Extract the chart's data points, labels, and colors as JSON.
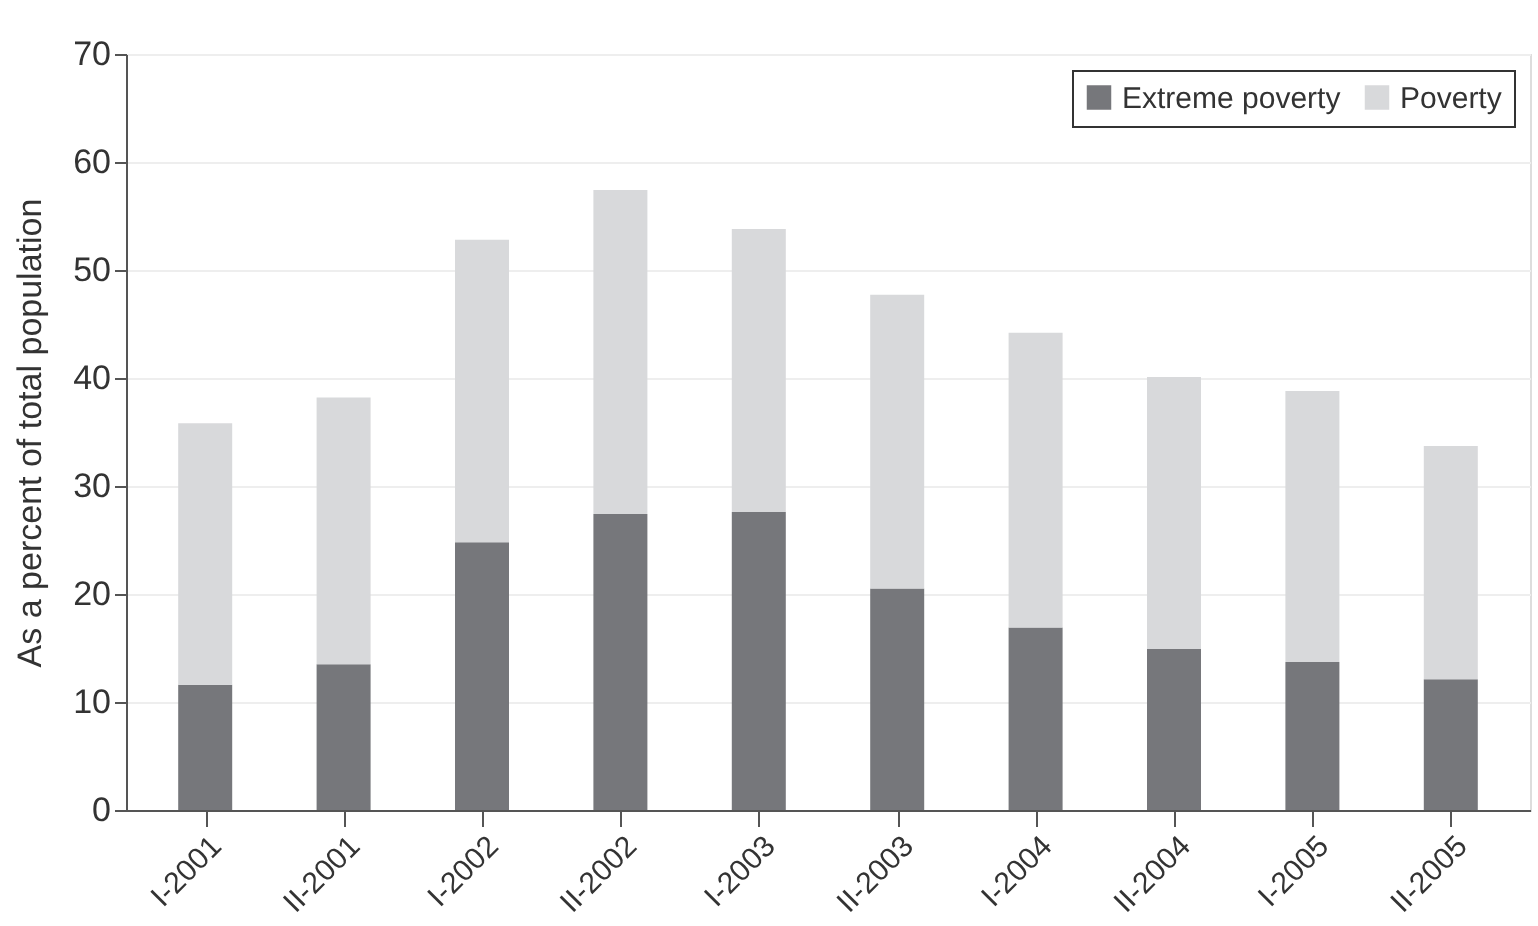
{
  "chart_data": {
    "type": "bar",
    "stacked": true,
    "ylabel": "As a percent of total population",
    "categories": [
      "I-2001",
      "II-2001",
      "I-2002",
      "II-2002",
      "I-2003",
      "II-2003",
      "I-2004",
      "II-2004",
      "I-2005",
      "II-2005"
    ],
    "series": [
      {
        "name": "Extreme poverty",
        "color": "#76777b",
        "values": [
          11.6,
          13.5,
          24.8,
          27.4,
          27.6,
          20.5,
          16.9,
          14.9,
          13.7,
          12.1
        ]
      },
      {
        "name": "Poverty",
        "color": "#d8d9db",
        "values": [
          24.2,
          24.7,
          28.0,
          30.0,
          26.2,
          27.2,
          27.3,
          25.2,
          25.1,
          21.6
        ]
      }
    ],
    "ylim": [
      0,
      70
    ],
    "yticks": [
      0,
      10,
      20,
      30,
      40,
      50,
      60,
      70
    ],
    "grid": "y",
    "legend": "top right"
  }
}
